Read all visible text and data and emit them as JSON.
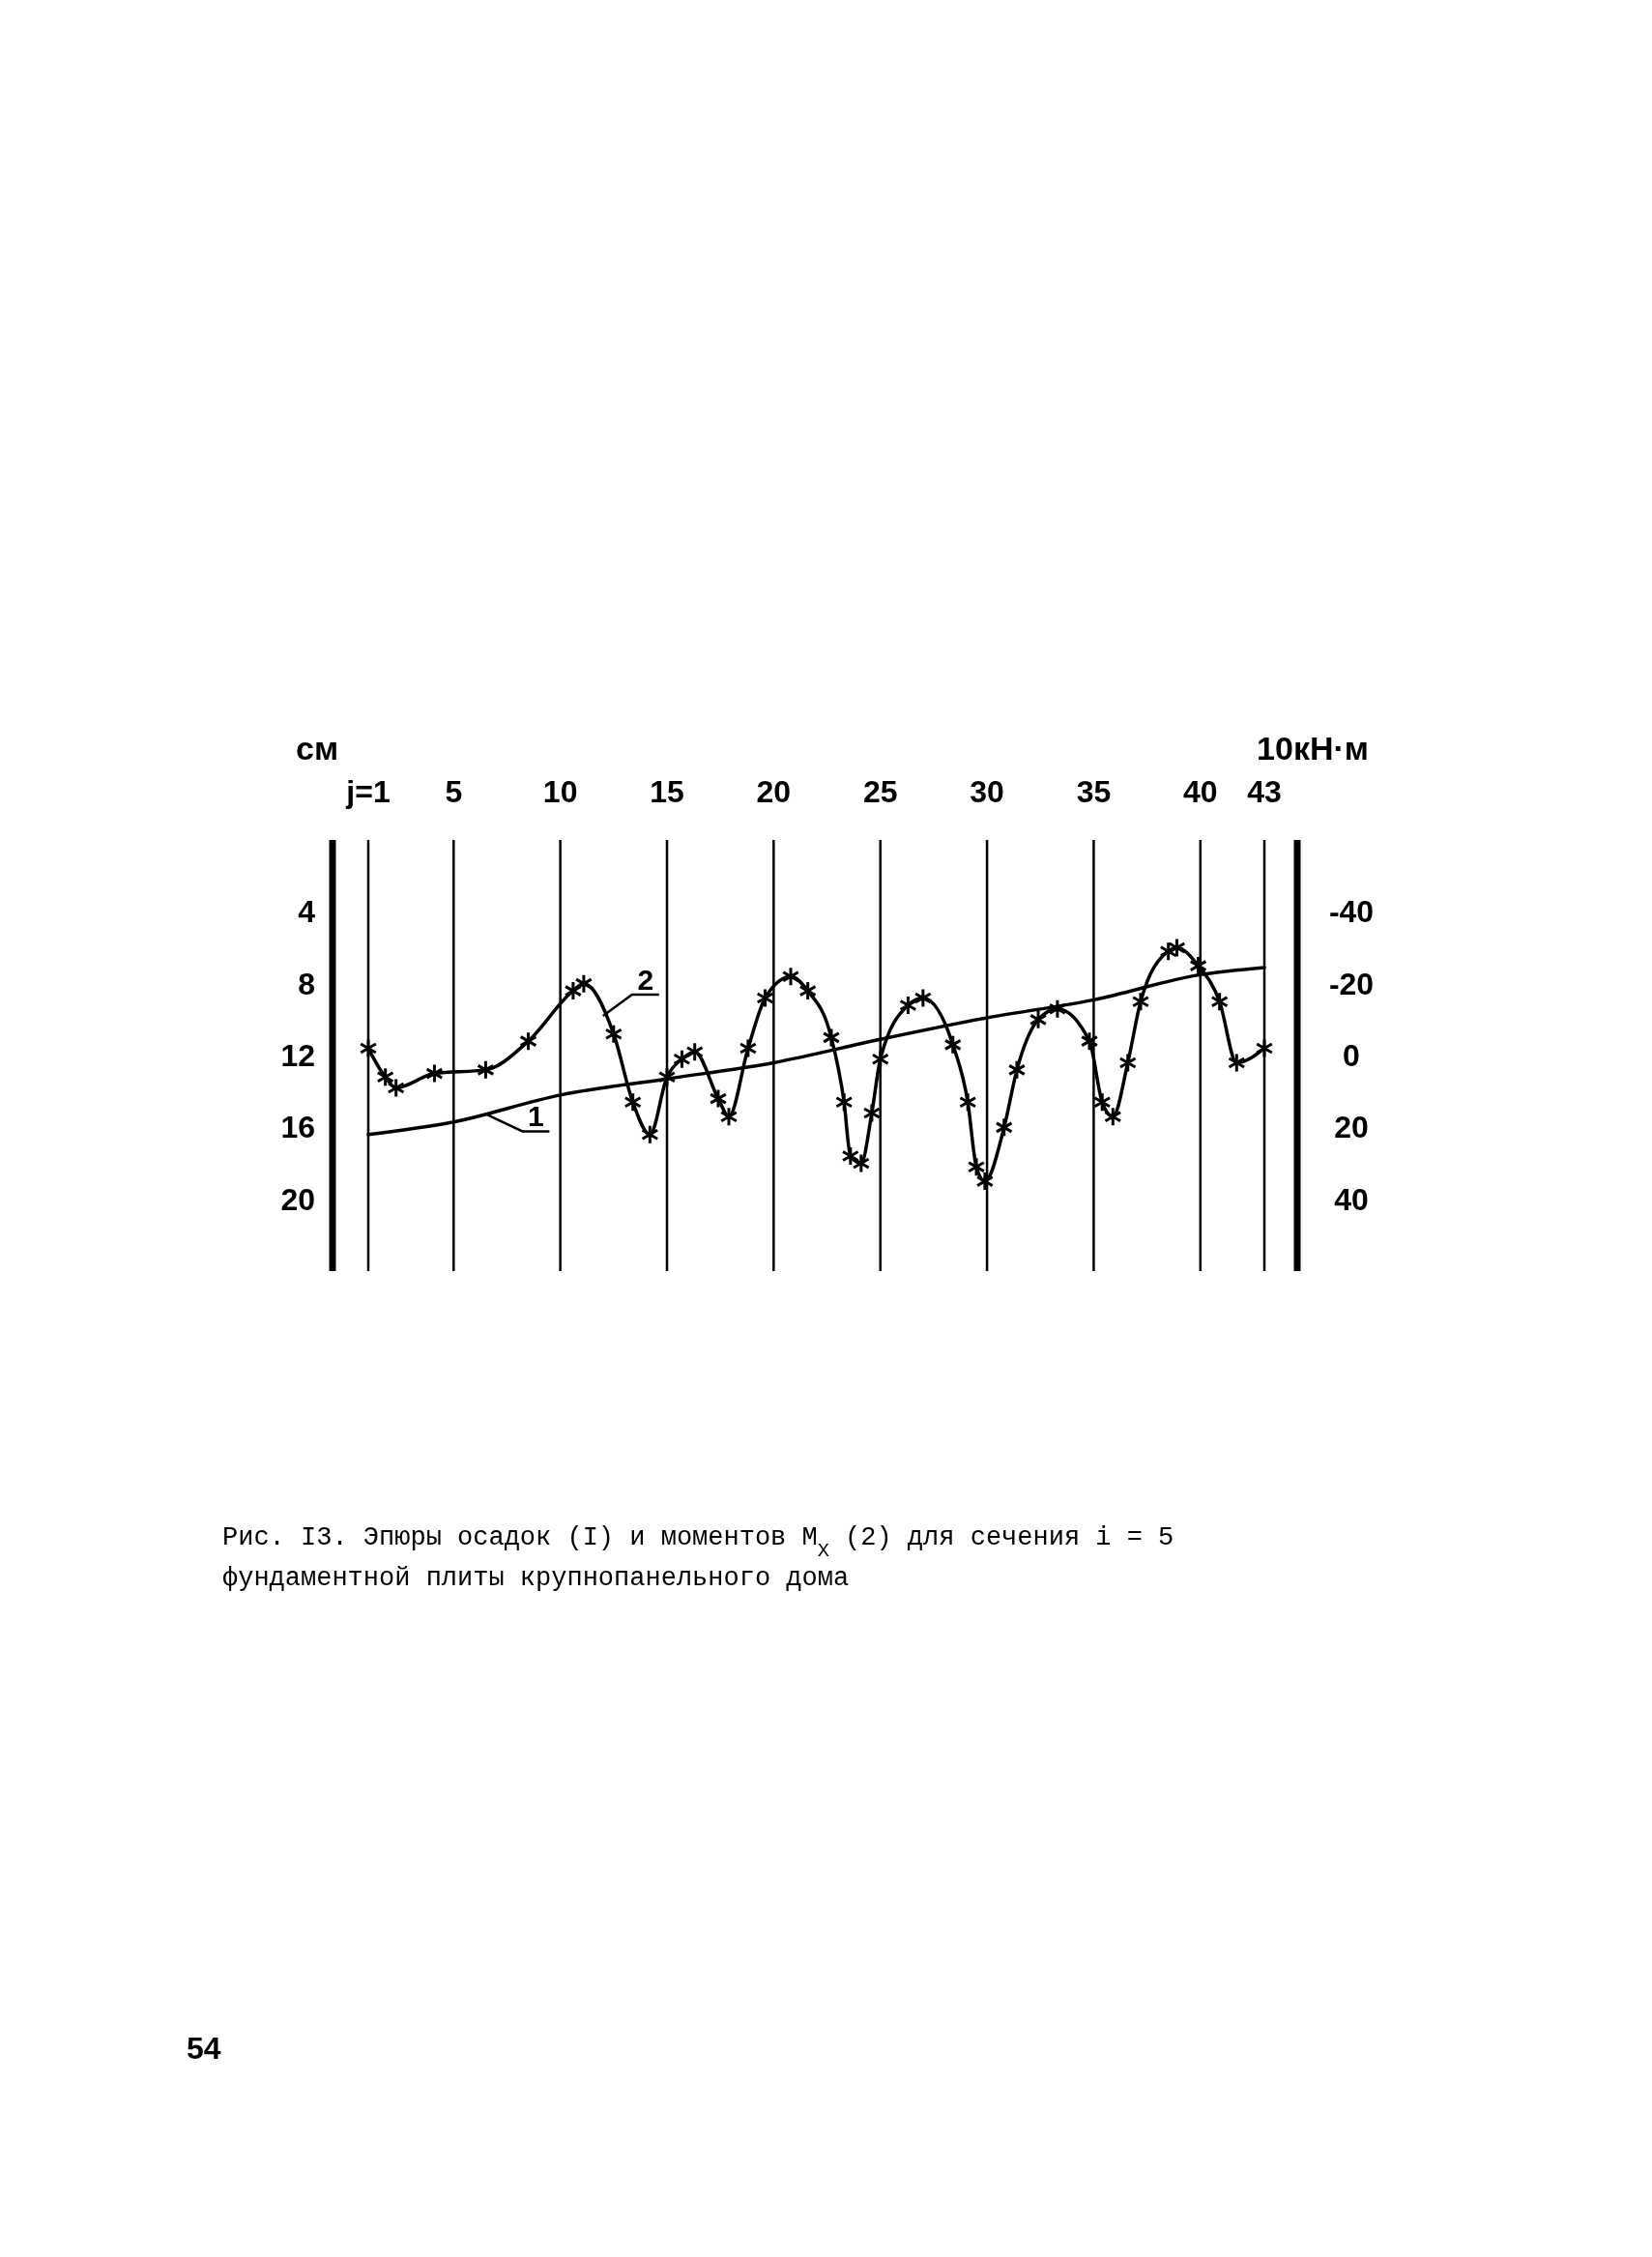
{
  "chart_data": {
    "type": "line",
    "xlim": [
      1,
      43
    ],
    "xticks": [
      {
        "value": 1,
        "label": "j=1"
      },
      5,
      10,
      15,
      20,
      25,
      30,
      35,
      40,
      43
    ],
    "ylim": [
      24,
      0
    ],
    "yticks": [
      4,
      8,
      12,
      16,
      20
    ],
    "ylabel": "см",
    "y2lim": [
      60,
      -60
    ],
    "y2ticks": [
      -40,
      -20,
      0,
      20,
      40
    ],
    "y2label": "10кН·м",
    "grid": "x",
    "line_style": "solid",
    "marker": "cross",
    "series": [
      {
        "name": "1",
        "color": "#000000",
        "axis": "y",
        "marker": "none",
        "x": [
          1,
          5,
          10,
          15,
          20,
          25,
          30,
          35,
          40,
          43
        ],
        "values": [
          16.4,
          15.7,
          14.2,
          13.3,
          12.4,
          11.1,
          9.9,
          8.9,
          7.5,
          7.1
        ]
      },
      {
        "name": "2",
        "color": "#000000",
        "axis": "y2",
        "x": [
          1,
          1.8,
          2.3,
          4.1,
          6.5,
          8.5,
          10.6,
          11.1,
          12.5,
          13.4,
          14.2,
          15,
          15.7,
          16.3,
          17.4,
          17.9,
          18.8,
          19.6,
          20.8,
          21.6,
          22.7,
          23.3,
          23.6,
          24.1,
          24.6,
          25,
          26.3,
          27,
          28.4,
          29.1,
          29.5,
          29.9,
          30.8,
          31.4,
          32.4,
          33.3,
          34.8,
          35.4,
          35.9,
          36.6,
          37.2,
          38.5,
          38.9,
          39.9,
          40.9,
          41.7,
          43
        ],
        "values": [
          -2,
          6,
          9,
          5,
          4,
          -4,
          -18,
          -20,
          -6,
          13,
          22,
          6,
          1,
          -1,
          12,
          17,
          -2,
          -16,
          -22,
          -18,
          -5,
          13,
          28,
          30,
          16,
          1,
          -14,
          -16,
          -3,
          13,
          31,
          35,
          20,
          4,
          -10,
          -13,
          -4,
          13,
          17,
          2,
          -15,
          -29,
          -30,
          -25,
          -15,
          2,
          -2
        ]
      }
    ],
    "annotations": [
      "Рис. I3. Эпюры осадок (I) и моментов M$_{X}$ (2) для сечения i = 5 фундаментной плиты крупнопанельного дома",
      "54"
    ]
  }
}
